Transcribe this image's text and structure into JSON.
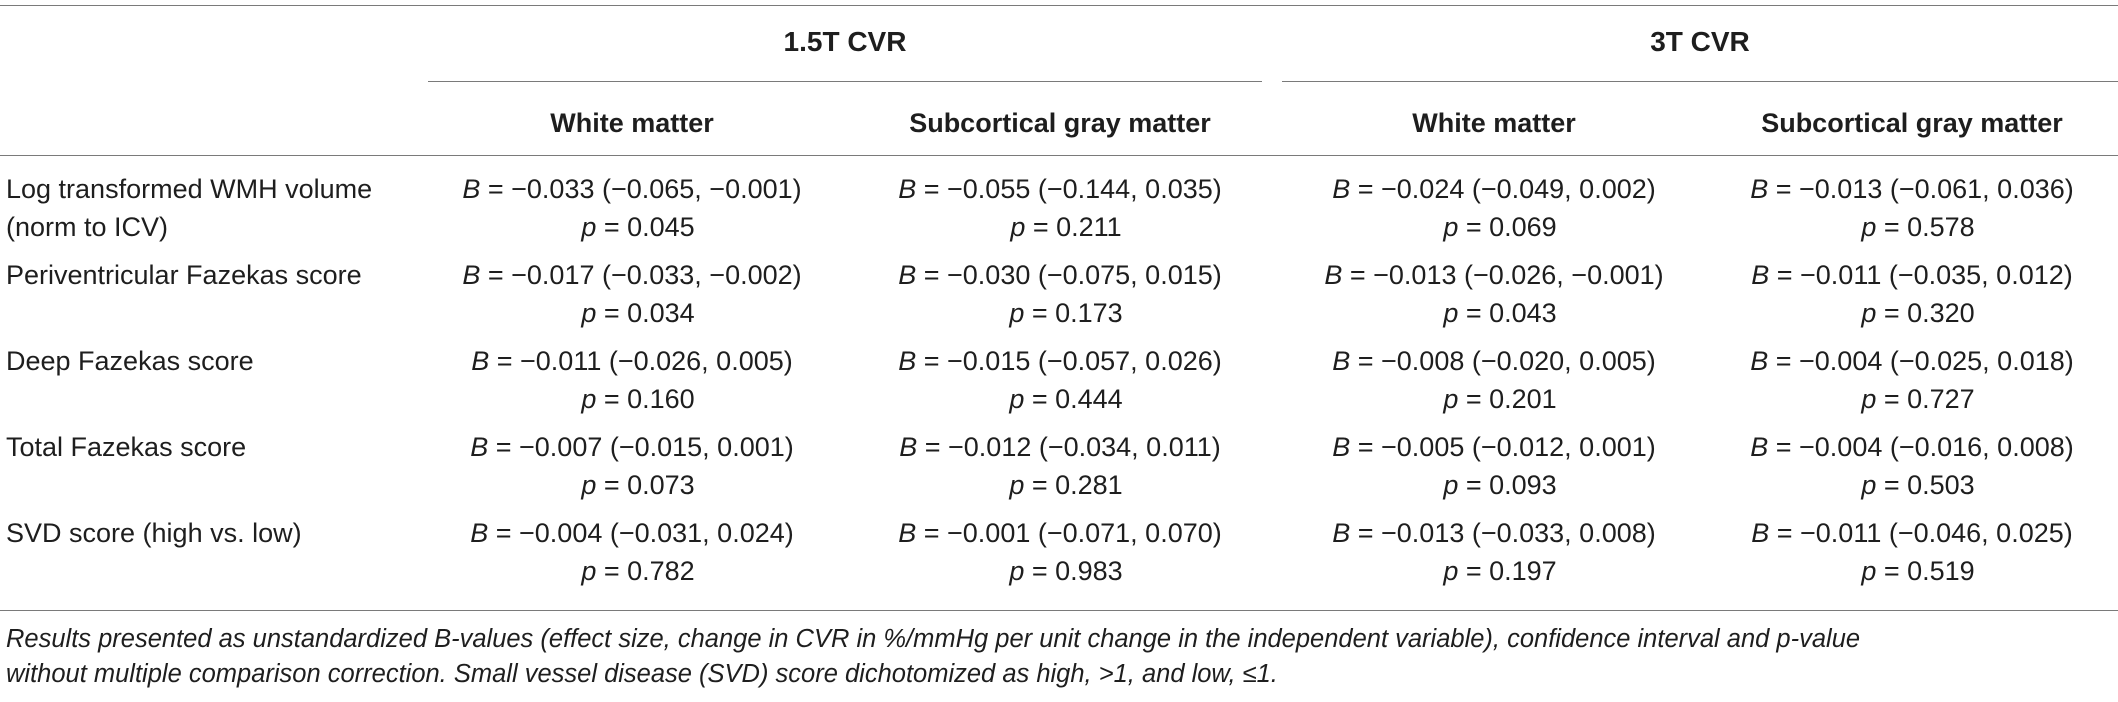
{
  "table": {
    "group_headers": [
      "1.5T CVR",
      "3T CVR"
    ],
    "column_headers": [
      "White matter",
      "Subcortical gray matter",
      "White matter",
      "Subcortical gray matter"
    ],
    "b_symbol": "B",
    "p_symbol": "p",
    "rows": [
      {
        "label": "Log transformed WMH volume",
        "label_line2": "(norm to ICV)",
        "cells": [
          {
            "b": " = −0.033 (−0.065, −0.001)",
            "p": " = 0.045"
          },
          {
            "b": " = −0.055 (−0.144, 0.035)",
            "p": " = 0.211"
          },
          {
            "b": " = −0.024 (−0.049, 0.002)",
            "p": " = 0.069"
          },
          {
            "b": " = −0.013 (−0.061, 0.036)",
            "p": " = 0.578"
          }
        ]
      },
      {
        "label": "Periventricular Fazekas score",
        "label_line2": "",
        "cells": [
          {
            "b": " = −0.017 (−0.033, −0.002)",
            "p": " = 0.034"
          },
          {
            "b": " = −0.030 (−0.075, 0.015)",
            "p": " = 0.173"
          },
          {
            "b": " = −0.013 (−0.026, −0.001)",
            "p": " = 0.043"
          },
          {
            "b": " = −0.011 (−0.035, 0.012)",
            "p": " = 0.320"
          }
        ]
      },
      {
        "label": "Deep Fazekas score",
        "label_line2": "",
        "cells": [
          {
            "b": " = −0.011 (−0.026, 0.005)",
            "p": " = 0.160"
          },
          {
            "b": " = −0.015 (−0.057, 0.026)",
            "p": " = 0.444"
          },
          {
            "b": " = −0.008 (−0.020, 0.005)",
            "p": " = 0.201"
          },
          {
            "b": " = −0.004 (−0.025, 0.018)",
            "p": " = 0.727"
          }
        ]
      },
      {
        "label": "Total Fazekas score",
        "label_line2": "",
        "cells": [
          {
            "b": " = −0.007 (−0.015, 0.001)",
            "p": " = 0.073"
          },
          {
            "b": " = −0.012 (−0.034, 0.011)",
            "p": " = 0.281"
          },
          {
            "b": " = −0.005 (−0.012, 0.001)",
            "p": " = 0.093"
          },
          {
            "b": " = −0.004 (−0.016, 0.008)",
            "p": " = 0.503"
          }
        ]
      },
      {
        "label": "SVD score (high vs. low)",
        "label_line2": "",
        "cells": [
          {
            "b": " = −0.004 (−0.031, 0.024)",
            "p": " = 0.782"
          },
          {
            "b": " = −0.001 (−0.071, 0.070)",
            "p": " = 0.983"
          },
          {
            "b": " = −0.013 (−0.033, 0.008)",
            "p": " = 0.197"
          },
          {
            "b": " = −0.011 (−0.046, 0.025)",
            "p": " = 0.519"
          }
        ]
      }
    ],
    "footnote_line1": "Results presented as unstandardized B-values (effect size, change in CVR in %/mmHg per unit change in the independent variable), confidence interval and p-value",
    "footnote_line2": "without multiple comparison correction. Small vessel disease (SVD) score dichotomized as high, >1, and low, ≤1."
  },
  "colors": {
    "text": "#1e1e1e",
    "rule": "#7a7a7a",
    "background": "#ffffff"
  }
}
